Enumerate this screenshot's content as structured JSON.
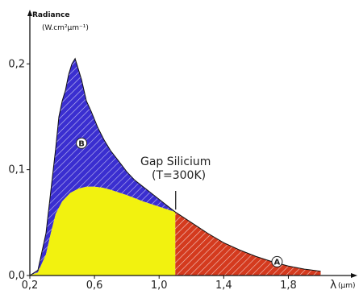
{
  "chart_data": {
    "type": "area",
    "ylabel": "Radiance",
    "yunit": "(W.cm²µm⁻¹)",
    "xlabel": "λ",
    "xunit": "(µm)",
    "xlim": [
      0.2,
      2.0
    ],
    "ylim": [
      0.0,
      0.22
    ],
    "xticks": [
      {
        "value": 0.2,
        "label": "0,2"
      },
      {
        "value": 0.6,
        "label": "0,6"
      },
      {
        "value": 1.0,
        "label": "1,0"
      },
      {
        "value": 1.4,
        "label": "1,4"
      },
      {
        "value": 1.8,
        "label": "1,8"
      }
    ],
    "yticks": [
      {
        "value": 0.0,
        "label": "0,0"
      },
      {
        "value": 0.1,
        "label": "0,1"
      },
      {
        "value": 0.2,
        "label": "0,2"
      }
    ],
    "grid": false,
    "spectrum": {
      "x": [
        0.2,
        0.25,
        0.3,
        0.33,
        0.36,
        0.38,
        0.4,
        0.42,
        0.44,
        0.46,
        0.48,
        0.5,
        0.52,
        0.55,
        0.58,
        0.62,
        0.66,
        0.7,
        0.75,
        0.8,
        0.85,
        0.9,
        0.95,
        1.0,
        1.05,
        1.1,
        1.2,
        1.3,
        1.4,
        1.5,
        1.6,
        1.7,
        1.8,
        1.9,
        2.0
      ],
      "y": [
        0.0,
        0.005,
        0.04,
        0.08,
        0.12,
        0.15,
        0.165,
        0.175,
        0.19,
        0.2,
        0.205,
        0.195,
        0.185,
        0.165,
        0.155,
        0.14,
        0.128,
        0.118,
        0.108,
        0.098,
        0.09,
        0.084,
        0.078,
        0.072,
        0.066,
        0.06,
        0.05,
        0.04,
        0.031,
        0.024,
        0.018,
        0.013,
        0.009,
        0.006,
        0.004
      ]
    },
    "usable": {
      "x": [
        0.2,
        0.25,
        0.3,
        0.33,
        0.36,
        0.4,
        0.45,
        0.5,
        0.55,
        0.6,
        0.65,
        0.7,
        0.8,
        0.9,
        1.0,
        1.1
      ],
      "y": [
        0.0,
        0.003,
        0.02,
        0.04,
        0.058,
        0.07,
        0.078,
        0.082,
        0.084,
        0.084,
        0.083,
        0.081,
        0.076,
        0.07,
        0.065,
        0.06
      ]
    },
    "gap_x": 1.1,
    "regions": [
      {
        "id": "A",
        "label": "A",
        "x": 1.73,
        "y": 0.013,
        "color": "#d43a1e"
      },
      {
        "id": "B",
        "label": "B",
        "x": 0.52,
        "y": 0.125,
        "color": "#3a2ed0"
      }
    ],
    "usable_color": "#f2f20f",
    "annotation": {
      "line1": "Gap Silicium",
      "line2": "(T=300K)"
    }
  }
}
